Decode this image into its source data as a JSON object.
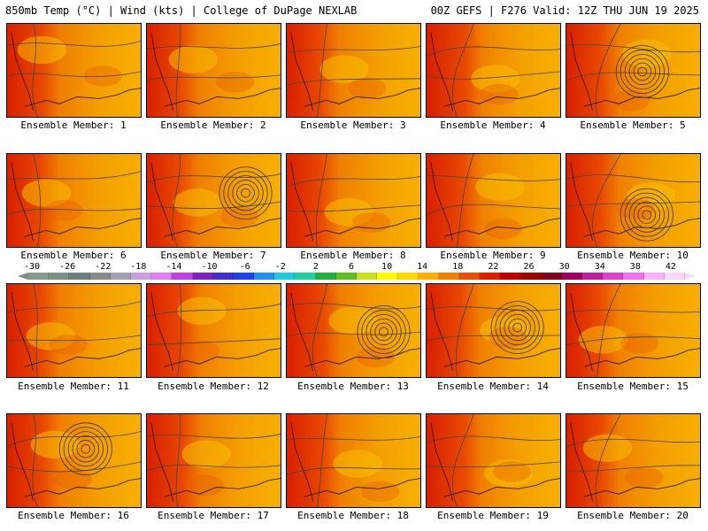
{
  "header": {
    "left": "850mb Temp (°C) | Wind (kts) | College of DuPage NEXLAB",
    "right": "00Z GEFS | F276 Valid: 12Z THU JUN 19 2025"
  },
  "members": [
    {
      "label": "Ensemble Member: 1",
      "heat": 0.55,
      "low": false
    },
    {
      "label": "Ensemble Member: 2",
      "heat": 0.45,
      "low": false
    },
    {
      "label": "Ensemble Member: 3",
      "heat": 0.45,
      "low": false
    },
    {
      "label": "Ensemble Member: 4",
      "heat": 0.7,
      "low": false
    },
    {
      "label": "Ensemble Member: 5",
      "heat": 0.5,
      "low": true
    },
    {
      "label": "Ensemble Member: 6",
      "heat": 0.45,
      "low": false
    },
    {
      "label": "Ensemble Member: 7",
      "heat": 0.4,
      "low": true
    },
    {
      "label": "Ensemble Member: 8",
      "heat": 0.5,
      "low": false
    },
    {
      "label": "Ensemble Member: 9",
      "heat": 0.6,
      "low": false
    },
    {
      "label": "Ensemble Member: 10",
      "heat": 0.5,
      "low": true
    },
    {
      "label": "Ensemble Member: 11",
      "heat": 0.5,
      "low": false
    },
    {
      "label": "Ensemble Member: 12",
      "heat": 0.55,
      "low": false
    },
    {
      "label": "Ensemble Member: 13",
      "heat": 0.6,
      "low": true
    },
    {
      "label": "Ensemble Member: 14",
      "heat": 0.5,
      "low": true
    },
    {
      "label": "Ensemble Member: 15",
      "heat": 0.4,
      "low": false
    },
    {
      "label": "Ensemble Member: 16",
      "heat": 0.55,
      "low": true
    },
    {
      "label": "Ensemble Member: 17",
      "heat": 0.6,
      "low": false
    },
    {
      "label": "Ensemble Member: 18",
      "heat": 0.6,
      "low": false
    },
    {
      "label": "Ensemble Member: 19",
      "heat": 0.65,
      "low": false
    },
    {
      "label": "Ensemble Member: 20",
      "heat": 0.5,
      "low": false
    }
  ],
  "colorbar": {
    "ticks": [
      "-30",
      "-26",
      "-22",
      "-18",
      "-14",
      "-10",
      "-6",
      "-2",
      "2",
      "6",
      "10",
      "14",
      "18",
      "22",
      "26",
      "30",
      "34",
      "38",
      "42"
    ],
    "colors": [
      "#8a9a8a",
      "#7d8f87",
      "#6f7f7f",
      "#8a8a8a",
      "#a0a0b4",
      "#c8a0e0",
      "#e080f0",
      "#c040e0",
      "#8020c0",
      "#4030d0",
      "#2040f0",
      "#2090f0",
      "#20c8e0",
      "#20d0a0",
      "#20b040",
      "#60c020",
      "#c8e020",
      "#ffff00",
      "#ffd800",
      "#ffb000",
      "#f08000",
      "#e85000",
      "#e02000",
      "#c00000",
      "#a00000",
      "#800020",
      "#a00060",
      "#c020a0",
      "#e040d0",
      "#f070f0",
      "#f8b0f8",
      "#f8d8f8"
    ]
  }
}
